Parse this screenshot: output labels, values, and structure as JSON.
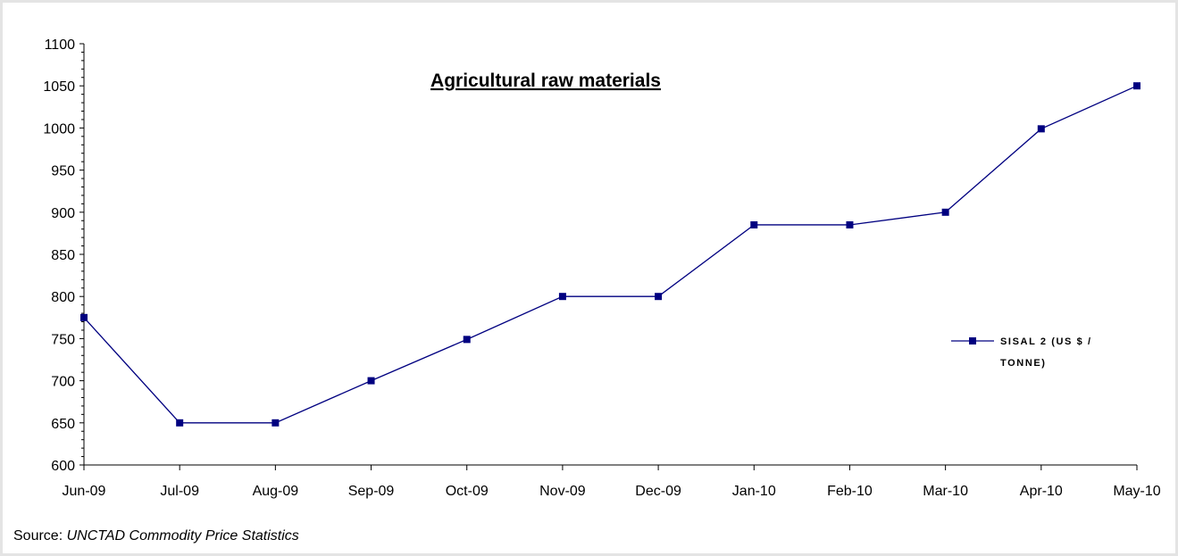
{
  "chart_data": {
    "type": "line",
    "title": "Agricultural raw materials",
    "categories": [
      "Jun-09",
      "Jul-09",
      "Aug-09",
      "Sep-09",
      "Oct-09",
      "Nov-09",
      "Dec-09",
      "Jan-10",
      "Feb-10",
      "Mar-10",
      "Apr-10",
      "May-10"
    ],
    "series": [
      {
        "name": "SISAL 2 (US $ / TONNE)",
        "values": [
          775,
          650,
          650,
          700,
          749,
          800,
          800,
          885,
          885,
          900,
          999,
          1050
        ],
        "color": "#000080"
      }
    ],
    "yticks": [
      600,
      650,
      700,
      750,
      800,
      850,
      900,
      950,
      1000,
      1050,
      1100
    ],
    "ylim": [
      600,
      1100
    ],
    "xlabel": "",
    "ylabel": "",
    "grid": false,
    "legend_position": "right",
    "legend_lines": [
      "SISAL 2 (US $ /",
      "TONNE)"
    ]
  },
  "source": {
    "prefix": "Source: ",
    "text": "UNCTAD Commodity Price Statistics"
  }
}
